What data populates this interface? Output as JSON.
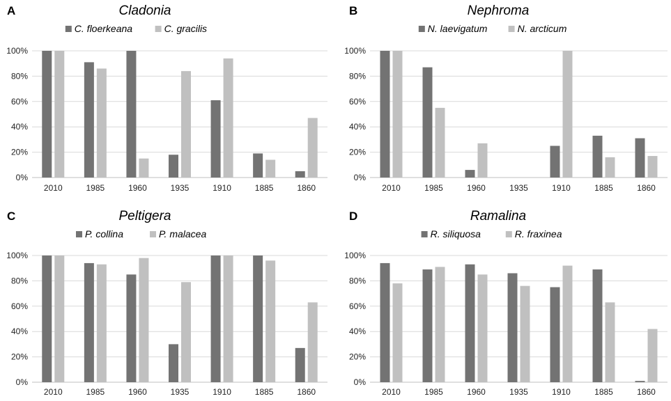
{
  "colors": {
    "series1": "#737373",
    "series2": "#c0c0c0",
    "grid": "#d9d9d9",
    "axis": "#bfbfbf"
  },
  "chart_data": [
    {
      "type": "bar",
      "panel": "A",
      "title": "Cladonia",
      "categories": [
        "2010",
        "1985",
        "1960",
        "1935",
        "1910",
        "1885",
        "1860"
      ],
      "series": [
        {
          "name": "C. floerkeana",
          "values": [
            100,
            91,
            100,
            18,
            61,
            19,
            5
          ]
        },
        {
          "name": "C. gracilis",
          "values": [
            100,
            86,
            15,
            84,
            94,
            14,
            47
          ]
        }
      ],
      "y_ticks": [
        "0%",
        "20%",
        "40%",
        "60%",
        "80%",
        "100%"
      ],
      "ylim": [
        0,
        100
      ],
      "grid": true,
      "legend": "top-center"
    },
    {
      "type": "bar",
      "panel": "B",
      "title": "Nephroma",
      "categories": [
        "2010",
        "1985",
        "1960",
        "1935",
        "1910",
        "1885",
        "1860"
      ],
      "series": [
        {
          "name": "N. laevigatum",
          "values": [
            100,
            87,
            6,
            0,
            25,
            33,
            31
          ]
        },
        {
          "name": "N. arcticum",
          "values": [
            100,
            55,
            27,
            0,
            100,
            16,
            17
          ]
        }
      ],
      "y_ticks": [
        "0%",
        "20%",
        "40%",
        "60%",
        "80%",
        "100%"
      ],
      "ylim": [
        0,
        100
      ],
      "grid": true,
      "legend": "top-center"
    },
    {
      "type": "bar",
      "panel": "C",
      "title": "Peltigera",
      "categories": [
        "2010",
        "1985",
        "1960",
        "1935",
        "1910",
        "1885",
        "1860"
      ],
      "series": [
        {
          "name": "P. collina",
          "values": [
            100,
            94,
            85,
            30,
            100,
            100,
            27
          ]
        },
        {
          "name": "P. malacea",
          "values": [
            100,
            93,
            98,
            79,
            100,
            96,
            63
          ]
        }
      ],
      "y_ticks": [
        "0%",
        "20%",
        "40%",
        "60%",
        "80%",
        "100%"
      ],
      "ylim": [
        0,
        100
      ],
      "grid": true,
      "legend": "top-center"
    },
    {
      "type": "bar",
      "panel": "D",
      "title": "Ramalina",
      "categories": [
        "2010",
        "1985",
        "1960",
        "1935",
        "1910",
        "1885",
        "1860"
      ],
      "series": [
        {
          "name": "R. siliquosa",
          "values": [
            94,
            89,
            93,
            86,
            75,
            89,
            1
          ]
        },
        {
          "name": "R. fraxinea",
          "values": [
            78,
            91,
            85,
            76,
            92,
            63,
            42
          ]
        }
      ],
      "y_ticks": [
        "0%",
        "20%",
        "40%",
        "60%",
        "80%",
        "100%"
      ],
      "ylim": [
        0,
        100
      ],
      "grid": true,
      "legend": "top-center"
    }
  ]
}
